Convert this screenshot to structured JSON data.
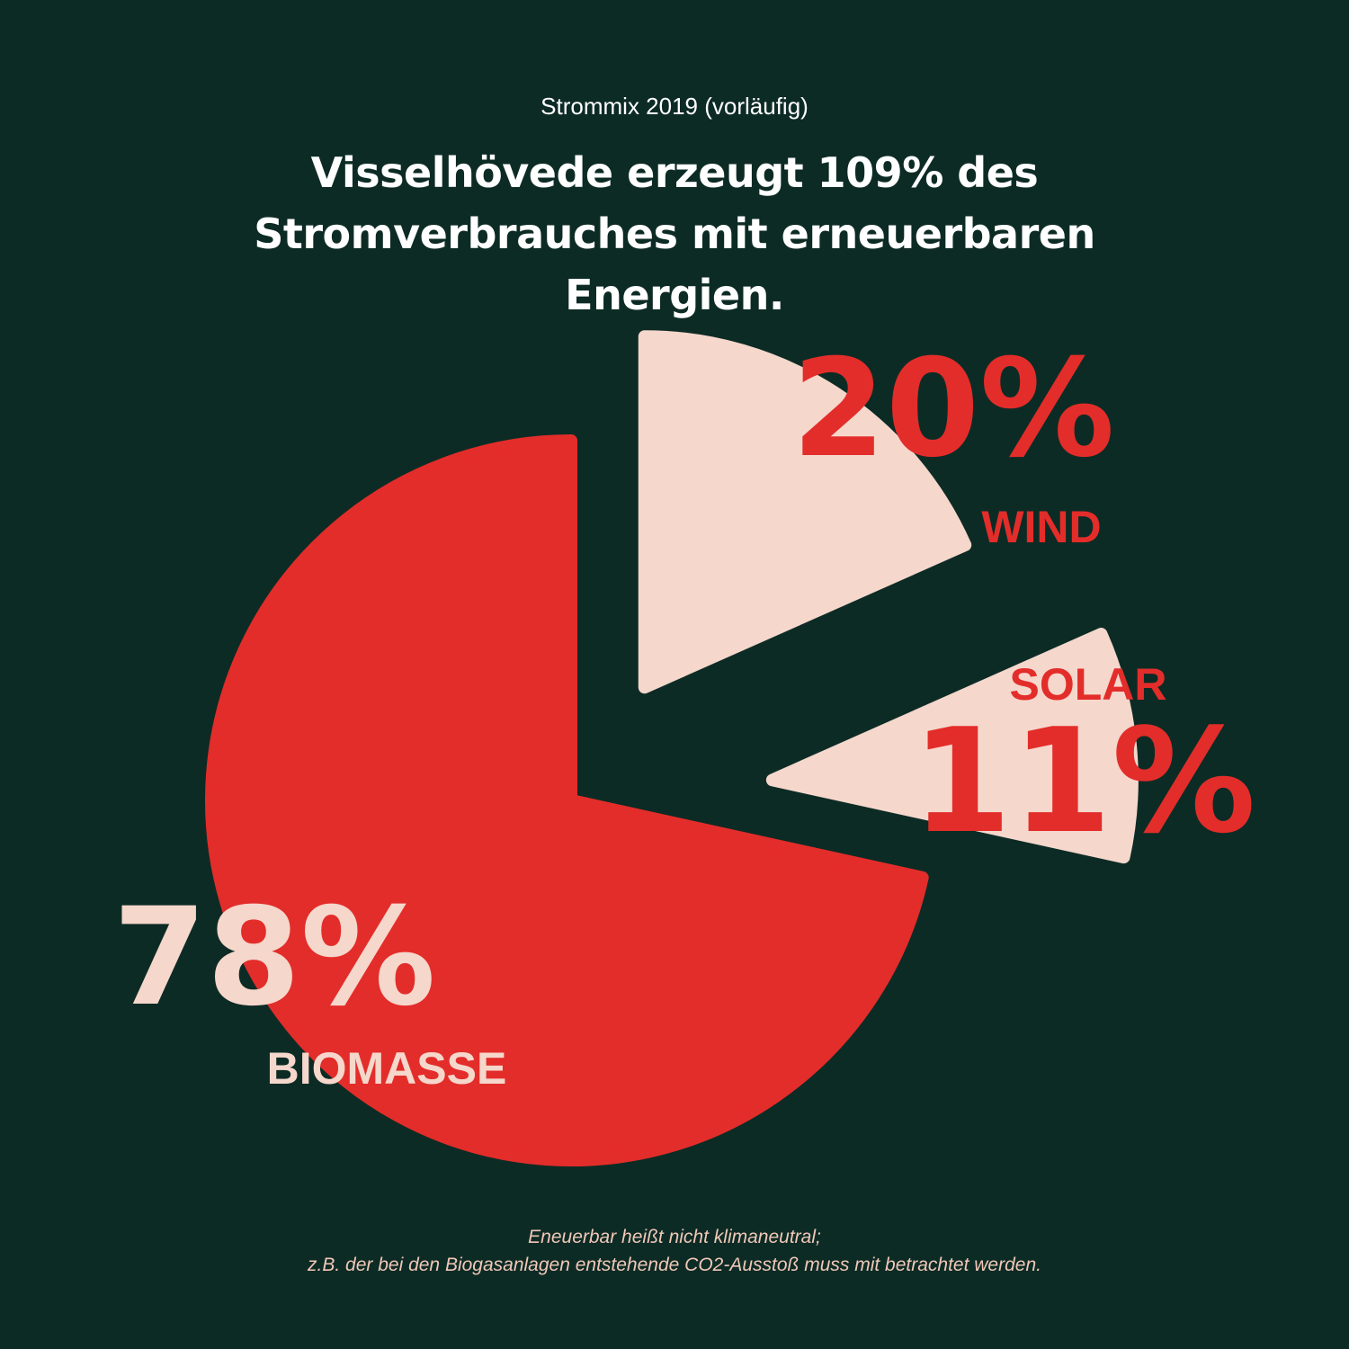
{
  "subtitle": "Strommix 2019 (vorläufig)",
  "title": "Visselhövede erzeugt 109% des Stromverbrauches mit erneuerbaren Energien.",
  "chart_data": {
    "type": "pie",
    "categories": [
      "BIOMASSE",
      "WIND",
      "SOLAR"
    ],
    "values": [
      78,
      20,
      11
    ],
    "value_labels": [
      "78%",
      "20%",
      "11%"
    ],
    "colors": [
      "#e32d2a",
      "#f5d7cc",
      "#f5d7cc"
    ]
  },
  "notes": [
    "Eneuerbar heißt nicht klimaneutral;",
    "z.B. der bei den Biogasanlagen entstehende CO2-Ausstoß muss mit betrachtet werden."
  ]
}
